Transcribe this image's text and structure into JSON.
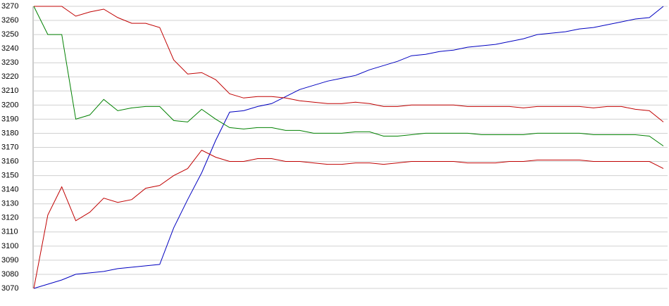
{
  "chart_data": {
    "type": "line",
    "ylim": [
      3070,
      3270
    ],
    "yticks": [
      3070,
      3080,
      3090,
      3100,
      3110,
      3120,
      3130,
      3140,
      3150,
      3160,
      3170,
      3180,
      3190,
      3200,
      3210,
      3220,
      3230,
      3240,
      3250,
      3260,
      3270
    ],
    "grid": true,
    "series": [
      {
        "color": "#0000c0",
        "values": [
          3070,
          3073,
          3076,
          3080,
          3081,
          3082,
          3084,
          3085,
          3086,
          3087,
          3113,
          3133,
          3152,
          3175,
          3195,
          3196,
          3199,
          3201,
          3206,
          3211,
          3214,
          3217,
          3219,
          3221,
          3225,
          3228,
          3231,
          3235,
          3236,
          3238,
          3239,
          3241,
          3242,
          3243,
          3245,
          3247,
          3250,
          3251,
          3252,
          3254,
          3255,
          3257,
          3259,
          3261,
          3262,
          3270
        ]
      },
      {
        "color": "#c00000",
        "values": [
          3270,
          3270,
          3270,
          3263,
          3266,
          3268,
          3262,
          3258,
          3258,
          3255,
          3232,
          3222,
          3223,
          3218,
          3208,
          3205,
          3206,
          3206,
          3205,
          3203,
          3202,
          3201,
          3201,
          3202,
          3201,
          3199,
          3199,
          3200,
          3200,
          3200,
          3200,
          3199,
          3199,
          3199,
          3199,
          3198,
          3199,
          3199,
          3199,
          3199,
          3198,
          3199,
          3199,
          3197,
          3196,
          3188
        ]
      },
      {
        "color": "#008000",
        "values": [
          3270,
          3250,
          3250,
          3190,
          3193,
          3204,
          3196,
          3198,
          3199,
          3199,
          3189,
          3188,
          3197,
          3190,
          3184,
          3183,
          3184,
          3184,
          3182,
          3182,
          3180,
          3180,
          3180,
          3181,
          3181,
          3178,
          3178,
          3179,
          3180,
          3180,
          3180,
          3180,
          3179,
          3179,
          3179,
          3179,
          3180,
          3180,
          3180,
          3180,
          3179,
          3179,
          3179,
          3179,
          3178,
          3171
        ]
      },
      {
        "color": "#c00000",
        "values": [
          3070,
          3122,
          3142,
          3118,
          3124,
          3134,
          3131,
          3133,
          3141,
          3143,
          3150,
          3155,
          3168,
          3163,
          3160,
          3160,
          3162,
          3162,
          3160,
          3160,
          3159,
          3158,
          3158,
          3159,
          3159,
          3158,
          3159,
          3160,
          3160,
          3160,
          3160,
          3159,
          3159,
          3159,
          3160,
          3160,
          3161,
          3161,
          3161,
          3161,
          3160,
          3160,
          3160,
          3160,
          3160,
          3155
        ]
      }
    ]
  }
}
